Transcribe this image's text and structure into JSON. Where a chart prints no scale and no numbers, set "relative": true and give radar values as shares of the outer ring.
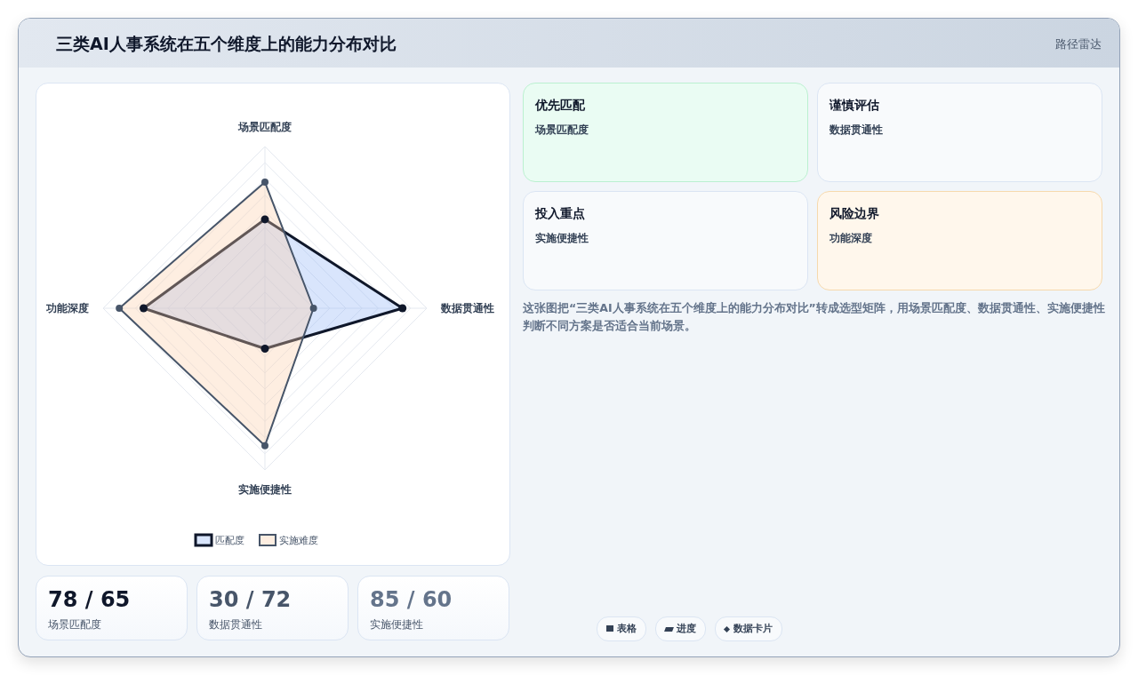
{
  "chart_data": [
    {
      "type": "radar",
      "title": "三类AI人事系统在五个维度上的能力分布对比",
      "categories": [
        "场景匹配度",
        "数据贯通性",
        "实施便捷性",
        "功能深度"
      ],
      "relative": true,
      "grid": true,
      "marker": "circle",
      "legend": "bottom",
      "series": [
        {
          "name": "匹配度",
          "color": "#0f172a",
          "values": [
            0.55,
            0.85,
            0.25,
            0.75
          ]
        },
        {
          "name": "实施难度",
          "color": "#475569",
          "values": [
            0.78,
            0.3,
            0.85,
            0.9
          ]
        }
      ]
    },
    {
      "type": "other",
      "annotations": [
        "路径雷达",
        "优先匹配",
        "场景匹配度",
        "谨慎评估",
        "数据贯通性",
        "投入重点",
        "实施便捷性",
        "风险边界",
        "功能深度",
        "这张图把“三类AI人事系统在五个维度上的能力分布对比”转成选型矩阵，用场景匹配度、数据贯通性、实施便捷性判断不同方案是否适合当前场景。",
        "78 / 65",
        "场景匹配度",
        "30 / 72",
        "数据贯通性",
        "85 / 60",
        "实施便捷性",
        "表格",
        "进度",
        "数据卡片"
      ]
    }
  ]
}
